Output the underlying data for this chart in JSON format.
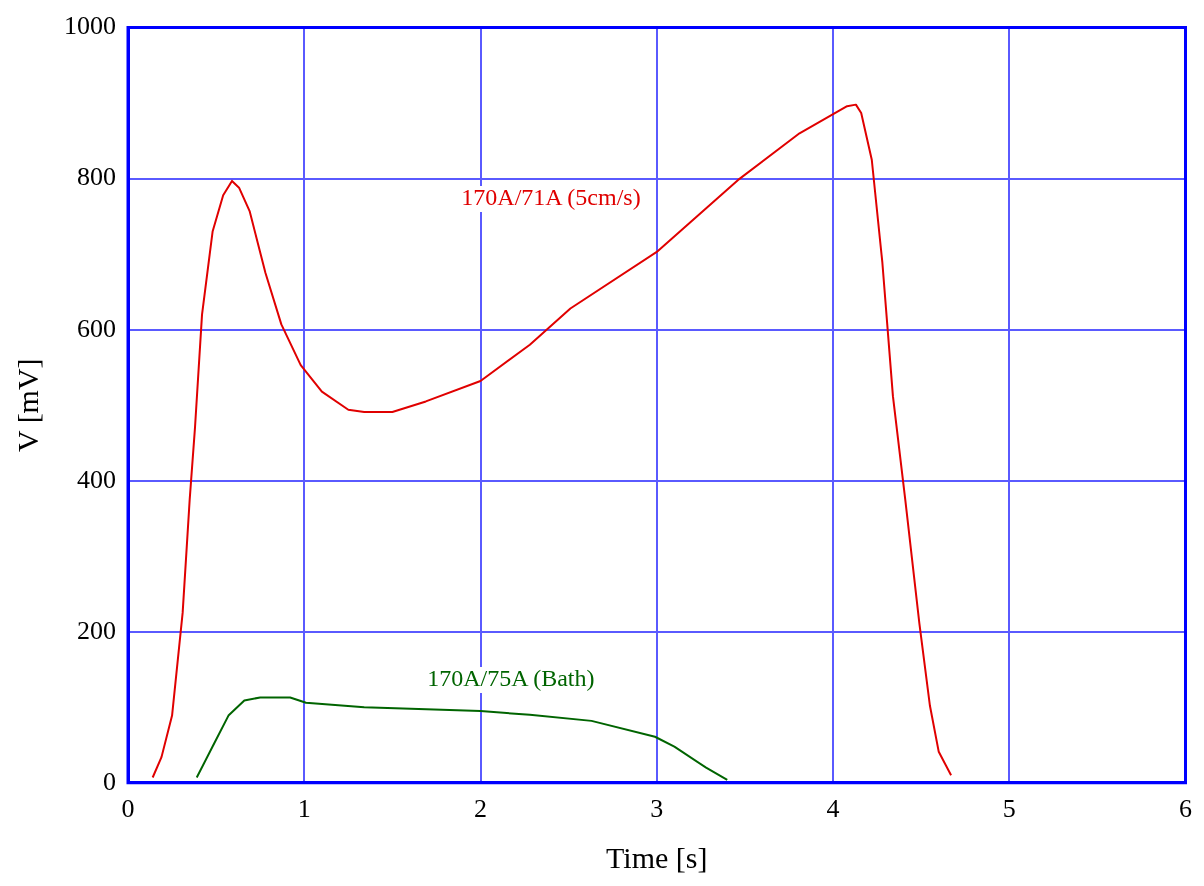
{
  "chart_data": {
    "type": "line",
    "xlabel": "Time [s]",
    "ylabel": "V [mV]",
    "xlim": [
      0,
      6
    ],
    "xticks": [
      0,
      1,
      2,
      3,
      4,
      5,
      6
    ],
    "ylim": [
      0,
      1000
    ],
    "yticks": [
      0,
      200,
      400,
      600,
      800,
      1000
    ],
    "grid": true,
    "legend": false,
    "marker": "none",
    "line_style": "solid",
    "series": [
      {
        "name": "170A/71A (5cm/s)",
        "color": "#e00000",
        "x": [
          0.14,
          0.19,
          0.25,
          0.31,
          0.35,
          0.38,
          0.42,
          0.48,
          0.54,
          0.59,
          0.63,
          0.69,
          0.78,
          0.87,
          0.98,
          1.1,
          1.25,
          1.34,
          1.5,
          1.69,
          2.0,
          2.28,
          2.51,
          3.0,
          3.46,
          3.81,
          4.08,
          4.13,
          4.16,
          4.22,
          4.28,
          4.34,
          4.41,
          4.49,
          4.55,
          4.6,
          4.67
        ],
        "values": [
          7,
          34,
          89,
          225,
          375,
          470,
          620,
          730,
          778,
          797,
          788,
          757,
          675,
          607,
          553,
          518,
          494,
          491,
          491,
          505,
          532,
          580,
          628,
          703,
          798,
          860,
          896,
          898,
          887,
          825,
          689,
          512,
          375,
          211,
          102,
          41,
          10
        ]
      },
      {
        "name": "170A/75A (Bath)",
        "color": "#006400",
        "x": [
          0.39,
          0.48,
          0.57,
          0.66,
          0.75,
          0.92,
          1.01,
          1.34,
          2.0,
          2.28,
          2.63,
          2.99,
          3.1,
          3.28,
          3.4
        ],
        "values": [
          7,
          48,
          89,
          109,
          113,
          113,
          106,
          100,
          95,
          90,
          82,
          61,
          48,
          20,
          4
        ]
      }
    ]
  }
}
